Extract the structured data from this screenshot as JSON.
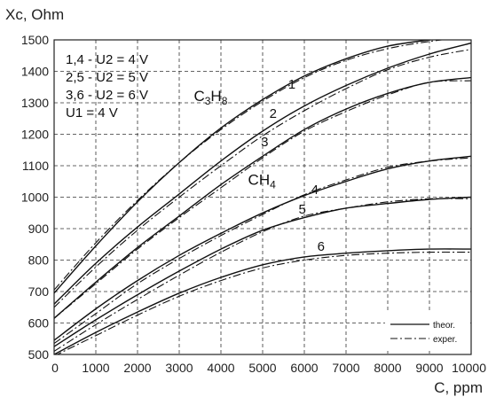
{
  "chart_data": {
    "type": "line",
    "ylabel": "Xc, Ohm",
    "xlabel": "C, ppm",
    "xlim": [
      0,
      10000
    ],
    "ylim": [
      500,
      1500
    ],
    "xticks": [
      "0",
      "1000",
      "2000",
      "3000",
      "4000",
      "5000",
      "6000",
      "7000",
      "8000",
      "9000",
      "10000"
    ],
    "yticks": [
      "500",
      "600",
      "700",
      "800",
      "900",
      "1000",
      "1100",
      "1200",
      "1300",
      "1400",
      "1500"
    ],
    "grid": true,
    "annotations": [
      "1,4 - U2 = 4 V",
      "2,5 - U2 = 5 V",
      "3,6 - U2 = 6 V",
      "U1 = 4 V"
    ],
    "gas_labels": [
      {
        "text": "C3H8",
        "main": "C",
        "sub1": "3",
        "mid": "H",
        "sub2": "8"
      },
      {
        "text": "CH4",
        "main": "CH",
        "sub1": "4"
      }
    ],
    "legend": {
      "placement": "bottom-right",
      "entries": [
        "theor.",
        "exper."
      ]
    },
    "x": [
      0,
      1000,
      2000,
      3000,
      4000,
      5000,
      6000,
      7000,
      8000,
      9000,
      10000
    ],
    "series": [
      {
        "name": "1",
        "theor": [
          695,
          845,
          985,
          1110,
          1220,
          1310,
          1385,
          1440,
          1480,
          1500,
          1515
        ],
        "exper": [
          705,
          855,
          990,
          1110,
          1215,
          1305,
          1380,
          1435,
          1472,
          1495,
          1510
        ]
      },
      {
        "name": "2",
        "theor": [
          660,
          790,
          905,
          1010,
          1115,
          1210,
          1290,
          1355,
          1410,
          1455,
          1490
        ],
        "exper": [
          650,
          778,
          895,
          1000,
          1100,
          1195,
          1275,
          1345,
          1405,
          1445,
          1470
        ]
      },
      {
        "name": "3",
        "theor": [
          615,
          730,
          840,
          940,
          1040,
          1130,
          1215,
          1280,
          1330,
          1365,
          1380
        ],
        "exper": [
          615,
          725,
          835,
          935,
          1030,
          1125,
          1210,
          1272,
          1325,
          1365,
          1370
        ]
      },
      {
        "name": "4",
        "theor": [
          545,
          645,
          735,
          815,
          885,
          950,
          1005,
          1050,
          1090,
          1115,
          1130
        ],
        "exper": [
          535,
          630,
          725,
          805,
          878,
          945,
          1008,
          1055,
          1095,
          1115,
          1125
        ]
      },
      {
        "name": "5",
        "theor": [
          525,
          610,
          690,
          765,
          835,
          895,
          935,
          965,
          980,
          993,
          1000
        ],
        "exper": [
          510,
          595,
          675,
          752,
          825,
          890,
          940,
          965,
          985,
          995,
          995
        ]
      },
      {
        "name": "6",
        "theor": [
          500,
          570,
          635,
          695,
          745,
          785,
          810,
          822,
          830,
          835,
          835
        ],
        "exper": [
          495,
          560,
          625,
          685,
          735,
          775,
          800,
          815,
          822,
          825,
          825
        ]
      }
    ],
    "curve_label_points": [
      {
        "series": "1",
        "x": 5700,
        "y": 1345
      },
      {
        "series": "2",
        "x": 5250,
        "y": 1252
      },
      {
        "series": "3",
        "x": 5050,
        "y": 1162
      },
      {
        "series": "4",
        "x": 6250,
        "y": 1010
      },
      {
        "series": "5",
        "x": 5950,
        "y": 948
      },
      {
        "series": "6",
        "x": 6400,
        "y": 830
      }
    ],
    "gas_label_points": [
      {
        "x": 3350,
        "y": 1305
      },
      {
        "x": 4650,
        "y": 1040
      }
    ]
  }
}
